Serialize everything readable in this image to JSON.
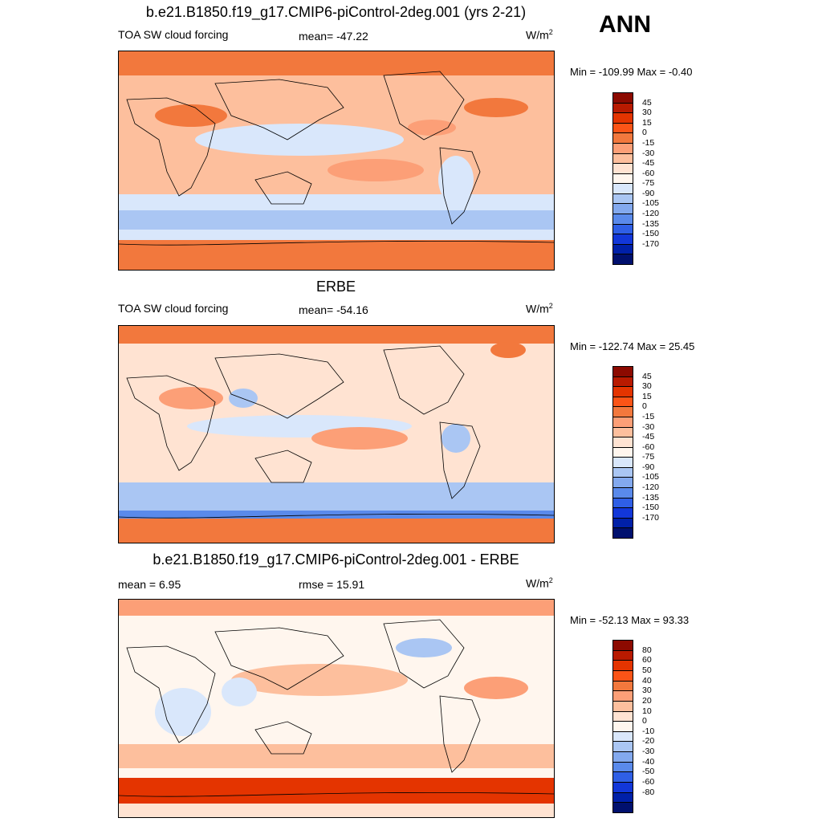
{
  "season": "ANN",
  "colors": {
    "panel1": [
      "#ffe3d2",
      "#fdb895",
      "#f47a4d",
      "#f47a4d",
      "#ffe3d2",
      "#cbdff8",
      "#a2c1f2",
      "#ffe3d2",
      "#fdb895"
    ],
    "land": "#000000"
  },
  "panels": [
    {
      "title": "b.e21.B1850.f19_g17.CMIP6-piControl-2deg.001 (yrs 2-21)",
      "left_label": "TOA SW cloud forcing",
      "mid_label": "mean= -47.22",
      "units_base": "W/m",
      "units_sup": "2",
      "minmax": "Min = -109.99 Max =  -0.40",
      "colorbar": {
        "labels": [
          "45",
          "30",
          "15",
          "0",
          "-15",
          "-30",
          "-45",
          "-60",
          "-75",
          "-90",
          "-105",
          "-120",
          "-135",
          "-150",
          "-170"
        ],
        "colors": [
          "#8c0a00",
          "#b81a00",
          "#e43400",
          "#fb5417",
          "#f2783d",
          "#fc9f77",
          "#fdbf9d",
          "#ffe3d2",
          "#fff6ee",
          "#d9e7fb",
          "#aac6f3",
          "#83a9ee",
          "#5a8aeb",
          "#2f5fe6",
          "#1237d9",
          "#0020a8",
          "#00106e"
        ]
      },
      "field": {
        "bg": "#fdbf9d"
      }
    },
    {
      "title": "ERBE",
      "left_label": "TOA SW cloud forcing",
      "mid_label": "mean= -54.16",
      "units_base": "W/m",
      "units_sup": "2",
      "minmax": "Min = -122.74 Max =  25.45",
      "colorbar": {
        "labels": [
          "45",
          "30",
          "15",
          "0",
          "-15",
          "-30",
          "-45",
          "-60",
          "-75",
          "-90",
          "-105",
          "-120",
          "-135",
          "-150",
          "-170"
        ],
        "colors": [
          "#8c0a00",
          "#b81a00",
          "#e43400",
          "#fb5417",
          "#f2783d",
          "#fc9f77",
          "#fdbf9d",
          "#ffe3d2",
          "#fff6ee",
          "#d9e7fb",
          "#aac6f3",
          "#83a9ee",
          "#5a8aeb",
          "#2f5fe6",
          "#1237d9",
          "#0020a8",
          "#00106e"
        ]
      }
    },
    {
      "title": "b.e21.B1850.f19_g17.CMIP6-piControl-2deg.001 - ERBE",
      "left_label": "mean =   6.95",
      "mid_label": "rmse =  15.91",
      "units_base": "W/m",
      "units_sup": "2",
      "minmax": "Min = -52.13 Max =  93.33",
      "colorbar": {
        "labels": [
          "80",
          "60",
          "50",
          "40",
          "30",
          "20",
          "10",
          "0",
          "-10",
          "-20",
          "-30",
          "-40",
          "-50",
          "-60",
          "-80"
        ],
        "colors": [
          "#8c0a00",
          "#b81a00",
          "#e43400",
          "#fb5417",
          "#f2783d",
          "#fc9f77",
          "#fdbf9d",
          "#ffe3d2",
          "#fff6ee",
          "#d9e7fb",
          "#aac6f3",
          "#83a9ee",
          "#5a8aeb",
          "#2f5fe6",
          "#1237d9",
          "#0020a8",
          "#00106e"
        ]
      }
    }
  ],
  "chart_data": [
    {
      "type": "heatmap",
      "title": "b.e21.B1850.f19_g17.CMIP6-piControl-2deg.001 (yrs 2-21)",
      "variable": "TOA SW cloud forcing",
      "units": "W/m2",
      "mean": -47.22,
      "min": -109.99,
      "max": -0.4,
      "contour_levels": [
        -170,
        -150,
        -135,
        -120,
        -105,
        -90,
        -75,
        -60,
        -45,
        -30,
        -15,
        0,
        15,
        30,
        45
      ]
    },
    {
      "type": "heatmap",
      "title": "ERBE",
      "variable": "TOA SW cloud forcing",
      "units": "W/m2",
      "mean": -54.16,
      "min": -122.74,
      "max": 25.45,
      "contour_levels": [
        -170,
        -150,
        -135,
        -120,
        -105,
        -90,
        -75,
        -60,
        -45,
        -30,
        -15,
        0,
        15,
        30,
        45
      ]
    },
    {
      "type": "heatmap",
      "title": "b.e21.B1850.f19_g17.CMIP6-piControl-2deg.001 - ERBE",
      "units": "W/m2",
      "mean": 6.95,
      "rmse": 15.91,
      "min": -52.13,
      "max": 93.33,
      "contour_levels": [
        -80,
        -60,
        -50,
        -40,
        -30,
        -20,
        -10,
        0,
        10,
        20,
        30,
        40,
        50,
        60,
        80
      ]
    }
  ]
}
